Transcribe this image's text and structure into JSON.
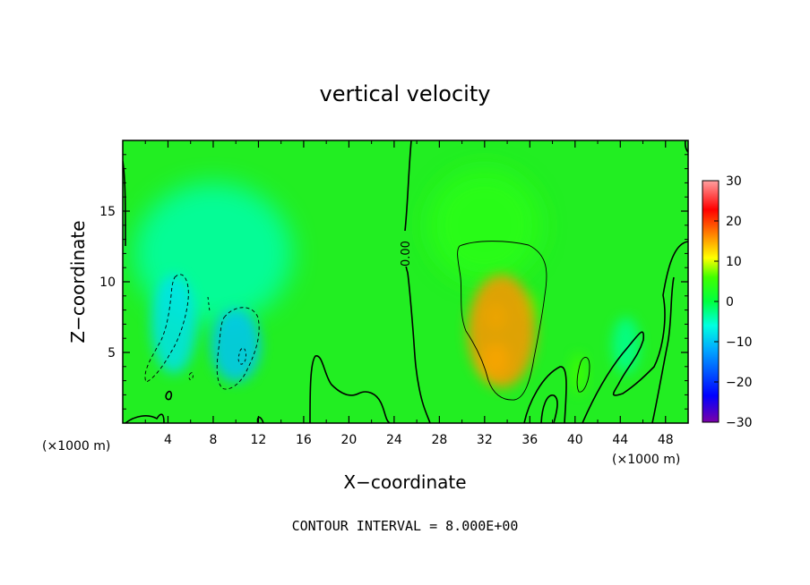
{
  "chart_data": {
    "type": "heatmap",
    "title": "vertical velocity",
    "xlabel": "X−coordinate",
    "ylabel": "Z−coordinate",
    "x_unit_left": "(×1000 m)",
    "x_unit_right": "(×1000 m)",
    "xlim": [
      0,
      50
    ],
    "ylim": [
      0,
      20
    ],
    "xticks": [
      4,
      8,
      12,
      16,
      20,
      24,
      28,
      32,
      36,
      40,
      44,
      48
    ],
    "xtick_labels": [
      "4",
      "8",
      "12",
      "16",
      "20",
      "24",
      "28",
      "32",
      "36",
      "40",
      "44",
      "48"
    ],
    "yticks": [
      5,
      10,
      15
    ],
    "ytick_labels": [
      "5",
      "10",
      "15"
    ],
    "colorbar": {
      "min": -30,
      "max": 30,
      "ticks": [
        30,
        20,
        10,
        0,
        -10,
        -20,
        -30
      ],
      "tick_labels": [
        "30",
        "20",
        "10",
        "0",
        "−10",
        "−20",
        "−30"
      ],
      "colors": [
        "#7a00a8",
        "#0000ff",
        "#00a8ff",
        "#00ffe0",
        "#00ff40",
        "#40ff00",
        "#ffff00",
        "#ff8000",
        "#ff0000",
        "#ffa0a0"
      ]
    },
    "contour_label": "0.00",
    "footer": "CONTOUR INTERVAL = 8.000E+00",
    "features": [
      {
        "kind": "updraft",
        "x": 33.5,
        "z": 6.5,
        "sx": 3.0,
        "sz": 4.0,
        "value": 16
      },
      {
        "kind": "updraft",
        "x": 33,
        "z": 4.5,
        "sx": 1.2,
        "sz": 1.2,
        "value": 10
      },
      {
        "kind": "updraft",
        "x": 33,
        "z": 7.5,
        "sx": 1.0,
        "sz": 1.0,
        "value": 8
      },
      {
        "kind": "updraft",
        "x": 35.8,
        "z": 8.2,
        "sx": 0.8,
        "sz": 1.0,
        "value": 6
      },
      {
        "kind": "updraft",
        "x": 32,
        "z": 14,
        "sx": 5,
        "sz": 4,
        "value": 4
      },
      {
        "kind": "updraft",
        "x": 40.3,
        "z": 3.5,
        "sx": 0.7,
        "sz": 1.4,
        "value": 6
      },
      {
        "kind": "downdraft",
        "x": 10,
        "z": 5.5,
        "sx": 2.2,
        "sz": 2.6,
        "value": -10
      },
      {
        "kind": "downdraft",
        "x": 4.5,
        "z": 7,
        "sx": 2.0,
        "sz": 3.5,
        "value": -8
      },
      {
        "kind": "downdraft",
        "x": 8,
        "z": 12,
        "sx": 7,
        "sz": 5,
        "value": -4
      },
      {
        "kind": "downdraft",
        "x": 44.5,
        "z": 5.5,
        "sx": 1.2,
        "sz": 2.0,
        "value": -3
      }
    ]
  }
}
